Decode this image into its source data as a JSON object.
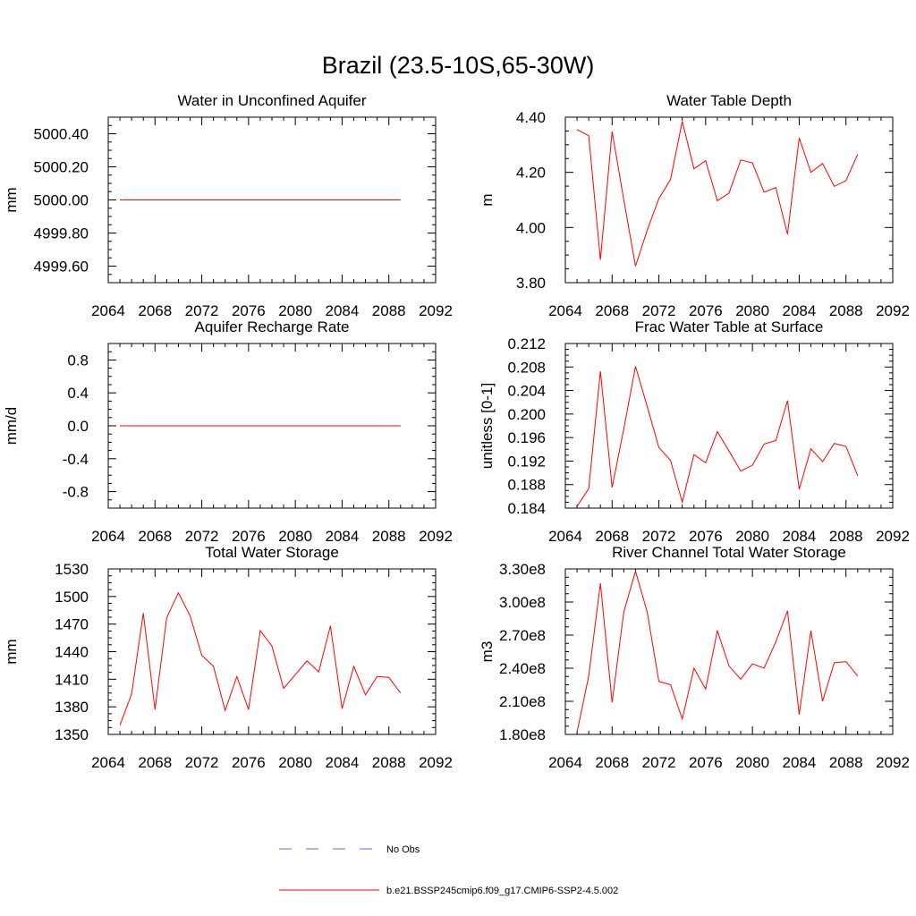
{
  "figure_title": "Brazil (23.5-10S,65-30W)",
  "colors": {
    "model_line": "#ff0000",
    "obs_line": "#6a6ad0",
    "axis": "#000000"
  },
  "legend": [
    {
      "label": "No Obs",
      "style": "dashed",
      "color": "#6a6ad0"
    },
    {
      "label": "b.e21.BSSP245cmip6.f09_g17.CMIP6-SSP2-4.5.002",
      "style": "solid",
      "color": "#ff0000"
    }
  ],
  "chart_data": [
    {
      "type": "line",
      "title": "Water in Unconfined Aquifer",
      "ylabel": "mm",
      "xlim": [
        2064,
        2092
      ],
      "ylim": [
        4999.5,
        5000.5
      ],
      "xticks": [
        2064,
        2068,
        2072,
        2076,
        2080,
        2084,
        2088,
        2092
      ],
      "yticks": [
        4999.6,
        4999.8,
        5000.0,
        5000.2,
        5000.4
      ],
      "ytick_labels": [
        "4999.60",
        "4999.80",
        "5000.00",
        "5000.20",
        "5000.40"
      ],
      "x": [
        2065,
        2066,
        2067,
        2068,
        2069,
        2070,
        2071,
        2072,
        2073,
        2074,
        2075,
        2076,
        2077,
        2078,
        2079,
        2080,
        2081,
        2082,
        2083,
        2084,
        2085,
        2086,
        2087,
        2088,
        2089
      ],
      "values": [
        5000,
        5000,
        5000,
        5000,
        5000,
        5000,
        5000,
        5000,
        5000,
        5000,
        5000,
        5000,
        5000,
        5000,
        5000,
        5000,
        5000,
        5000,
        5000,
        5000,
        5000,
        5000,
        5000,
        5000,
        5000
      ]
    },
    {
      "type": "line",
      "title": "Water Table Depth",
      "ylabel": "m",
      "xlim": [
        2064,
        2092
      ],
      "ylim": [
        3.8,
        4.4
      ],
      "xticks": [
        2064,
        2068,
        2072,
        2076,
        2080,
        2084,
        2088,
        2092
      ],
      "yticks": [
        3.8,
        4.0,
        4.2,
        4.4
      ],
      "ytick_labels": [
        "3.80",
        "4.00",
        "4.20",
        "4.40"
      ],
      "x": [
        2065,
        2066,
        2067,
        2068,
        2069,
        2070,
        2071,
        2072,
        2073,
        2074,
        2075,
        2076,
        2077,
        2078,
        2079,
        2080,
        2081,
        2082,
        2083,
        2084,
        2085,
        2086,
        2087,
        2088,
        2089
      ],
      "values": [
        4.355,
        4.333,
        3.883,
        4.348,
        4.1,
        3.86,
        3.99,
        4.105,
        4.175,
        4.385,
        4.213,
        4.242,
        4.097,
        4.125,
        4.245,
        4.234,
        4.128,
        4.145,
        3.975,
        4.325,
        4.2,
        4.232,
        4.149,
        4.17,
        4.265
      ]
    },
    {
      "type": "line",
      "title": "Aquifer Recharge Rate",
      "ylabel": "mm/d",
      "xlim": [
        2064,
        2092
      ],
      "ylim": [
        -1.0,
        1.0
      ],
      "xticks": [
        2064,
        2068,
        2072,
        2076,
        2080,
        2084,
        2088,
        2092
      ],
      "yticks": [
        -0.8,
        -0.4,
        0.0,
        0.4,
        0.8
      ],
      "ytick_labels": [
        "-0.8",
        "-0.4",
        "0.0",
        "0.4",
        "0.8"
      ],
      "x": [
        2065,
        2066,
        2067,
        2068,
        2069,
        2070,
        2071,
        2072,
        2073,
        2074,
        2075,
        2076,
        2077,
        2078,
        2079,
        2080,
        2081,
        2082,
        2083,
        2084,
        2085,
        2086,
        2087,
        2088,
        2089
      ],
      "values": [
        0,
        0,
        0,
        0,
        0,
        0,
        0,
        0,
        0,
        0,
        0,
        0,
        0,
        0,
        0,
        0,
        0,
        0,
        0,
        0,
        0,
        0,
        0,
        0,
        0
      ]
    },
    {
      "type": "line",
      "title": "Frac Water Table at Surface",
      "ylabel": "unitless [0-1]",
      "xlim": [
        2064,
        2092
      ],
      "ylim": [
        0.184,
        0.212
      ],
      "xticks": [
        2064,
        2068,
        2072,
        2076,
        2080,
        2084,
        2088,
        2092
      ],
      "yticks": [
        0.184,
        0.188,
        0.192,
        0.196,
        0.2,
        0.204,
        0.208,
        0.212
      ],
      "ytick_labels": [
        "0.184",
        "0.188",
        "0.192",
        "0.196",
        "0.200",
        "0.204",
        "0.208",
        "0.212"
      ],
      "x": [
        2065,
        2066,
        2067,
        2068,
        2069,
        2070,
        2071,
        2072,
        2073,
        2074,
        2075,
        2076,
        2077,
        2078,
        2079,
        2080,
        2081,
        2082,
        2083,
        2084,
        2085,
        2086,
        2087,
        2088,
        2089
      ],
      "values": [
        0.1843,
        0.1873,
        0.2073,
        0.1875,
        0.1975,
        0.2081,
        0.2013,
        0.1943,
        0.1921,
        0.185,
        0.1931,
        0.1917,
        0.197,
        0.1937,
        0.1903,
        0.1913,
        0.1949,
        0.1955,
        0.2023,
        0.1872,
        0.1941,
        0.1919,
        0.195,
        0.1945,
        0.1895
      ]
    },
    {
      "type": "line",
      "title": "Total Water Storage",
      "ylabel": "mm",
      "xlim": [
        2064,
        2092
      ],
      "ylim": [
        1350,
        1530
      ],
      "xticks": [
        2064,
        2068,
        2072,
        2076,
        2080,
        2084,
        2088,
        2092
      ],
      "yticks": [
        1350,
        1380,
        1410,
        1440,
        1470,
        1500,
        1530
      ],
      "ytick_labels": [
        "1350",
        "1380",
        "1410",
        "1440",
        "1470",
        "1500",
        "1530"
      ],
      "x": [
        2065,
        2066,
        2067,
        2068,
        2069,
        2070,
        2071,
        2072,
        2073,
        2074,
        2075,
        2076,
        2077,
        2078,
        2079,
        2080,
        2081,
        2082,
        2083,
        2084,
        2085,
        2086,
        2087,
        2088,
        2089
      ],
      "values": [
        1360,
        1394,
        1482,
        1377,
        1477,
        1504,
        1479,
        1436,
        1424,
        1376,
        1413,
        1377,
        1463,
        1446,
        1400,
        1415,
        1430,
        1418,
        1468,
        1378,
        1424,
        1393,
        1413,
        1412,
        1395
      ]
    },
    {
      "type": "line",
      "title": "River Channel Total Water Storage",
      "ylabel": "m3",
      "xlim": [
        2064,
        2092
      ],
      "ylim": [
        180000000,
        330000000
      ],
      "xticks": [
        2064,
        2068,
        2072,
        2076,
        2080,
        2084,
        2088,
        2092
      ],
      "yticks": [
        180000000,
        210000000,
        240000000,
        270000000,
        300000000,
        330000000
      ],
      "ytick_labels": [
        "1.80e8",
        "2.10e8",
        "2.40e8",
        "2.70e8",
        "3.00e8",
        "3.30e8"
      ],
      "x": [
        2065,
        2066,
        2067,
        2068,
        2069,
        2070,
        2071,
        2072,
        2073,
        2074,
        2075,
        2076,
        2077,
        2078,
        2079,
        2080,
        2081,
        2082,
        2083,
        2084,
        2085,
        2086,
        2087,
        2088,
        2089
      ],
      "values": [
        182000000,
        233000000,
        317000000,
        209000000,
        291000000,
        328000000,
        291000000,
        228000000,
        225000000,
        194000000,
        240000000,
        221000000,
        274000000,
        242000000,
        230000000,
        244000000,
        240000000,
        264000000,
        292000000,
        198000000,
        274000000,
        210000000,
        245000000,
        246000000,
        233000000
      ]
    }
  ]
}
